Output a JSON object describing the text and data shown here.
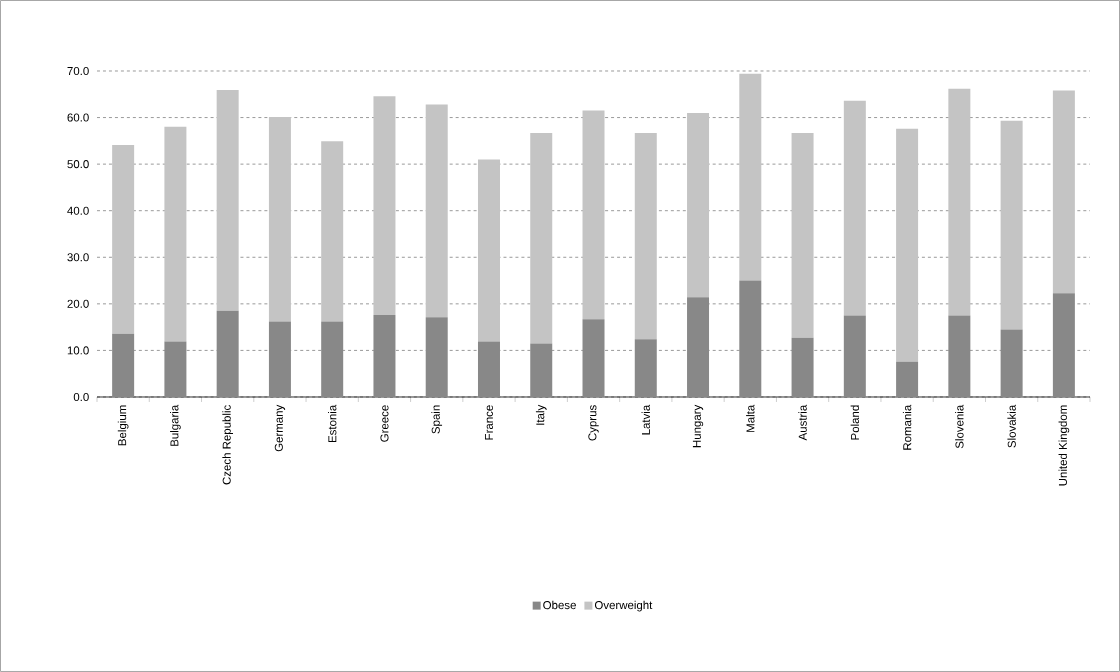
{
  "chart_data": {
    "type": "bar",
    "stacked": true,
    "categories": [
      "Belgium",
      "Bulgaria",
      "Czech Republic",
      "Germany",
      "Estonia",
      "Greece",
      "Spain",
      "France",
      "Italy",
      "Cyprus",
      "Latvia",
      "Hungary",
      "Malta",
      "Austria",
      "Poland",
      "Romania",
      "Slovenia",
      "Slovakia",
      "United Kingdom"
    ],
    "series": [
      {
        "name": "Obese",
        "color": "#888888",
        "values": [
          13.6,
          11.9,
          18.5,
          16.2,
          16.2,
          17.6,
          17.1,
          11.9,
          11.5,
          16.7,
          12.4,
          21.4,
          25.0,
          12.7,
          17.5,
          7.6,
          17.5,
          14.5,
          22.3
        ]
      },
      {
        "name": "Overweight",
        "color": "#c4c4c4",
        "values": [
          40.5,
          46.1,
          47.4,
          43.9,
          38.7,
          47.0,
          45.7,
          39.1,
          45.2,
          44.8,
          44.3,
          39.6,
          44.4,
          44.0,
          46.1,
          50.0,
          48.7,
          44.8,
          43.5
        ]
      }
    ],
    "ylim": [
      0,
      70
    ],
    "yticks": [
      {
        "value": 0,
        "label": "0.0"
      },
      {
        "value": 10,
        "label": "10.0"
      },
      {
        "value": 20,
        "label": "20.0"
      },
      {
        "value": 30,
        "label": "30.0"
      },
      {
        "value": 40,
        "label": "40.0"
      },
      {
        "value": 50,
        "label": "50.0"
      },
      {
        "value": 60,
        "label": "60.0"
      },
      {
        "value": 70,
        "label": "70.0"
      }
    ],
    "grid": "y",
    "legend": "bottom"
  }
}
